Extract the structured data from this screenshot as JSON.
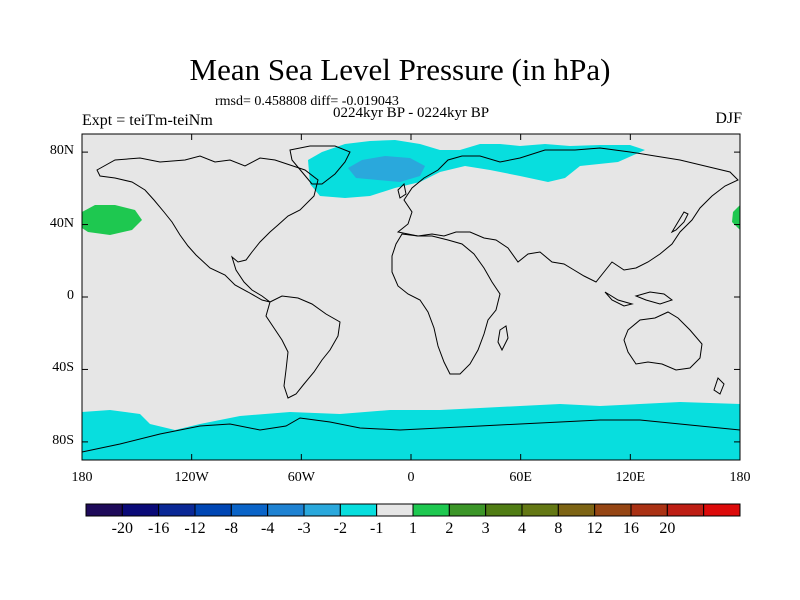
{
  "title": "Mean Sea Level Pressure (in hPa)",
  "stats": "rmsd= 0.458808 diff= -0.019043",
  "period": "0224kyr BP - 0224kyr BP",
  "expt": "Expt = teiTm-teiNm",
  "season": "DJF",
  "map": {
    "background_color": "#e6e6e6",
    "lat_ticks": [
      {
        "label": "80N",
        "lat": 80
      },
      {
        "label": "40N",
        "lat": 40
      },
      {
        "label": "0",
        "lat": 0
      },
      {
        "label": "40S",
        "lat": -40
      },
      {
        "label": "80S",
        "lat": -80
      }
    ],
    "lon_ticks": [
      {
        "label": "180",
        "lon": -180
      },
      {
        "label": "120W",
        "lon": -120
      },
      {
        "label": "60W",
        "lon": -60
      },
      {
        "label": "0",
        "lon": 0
      },
      {
        "label": "60E",
        "lon": 60
      },
      {
        "label": "120E",
        "lon": 120
      },
      {
        "label": "180",
        "lon": 180
      }
    ]
  },
  "colorbar": {
    "colors": [
      "#1e0a5a",
      "#0a0a78",
      "#0a2896",
      "#0046b4",
      "#0a64c8",
      "#1e82d2",
      "#2aa8dc",
      "#08dede",
      "#e6e6e6",
      "#1ec850",
      "#3c9628",
      "#507d14",
      "#647814",
      "#7d6414",
      "#964614",
      "#aa3214",
      "#be1e14",
      "#dc0a0a"
    ],
    "labels": [
      "-20",
      "-16",
      "-12",
      "-8",
      "-4",
      "-3",
      "-2",
      "-1",
      "1",
      "2",
      "3",
      "4",
      "8",
      "12",
      "16",
      "20"
    ]
  }
}
